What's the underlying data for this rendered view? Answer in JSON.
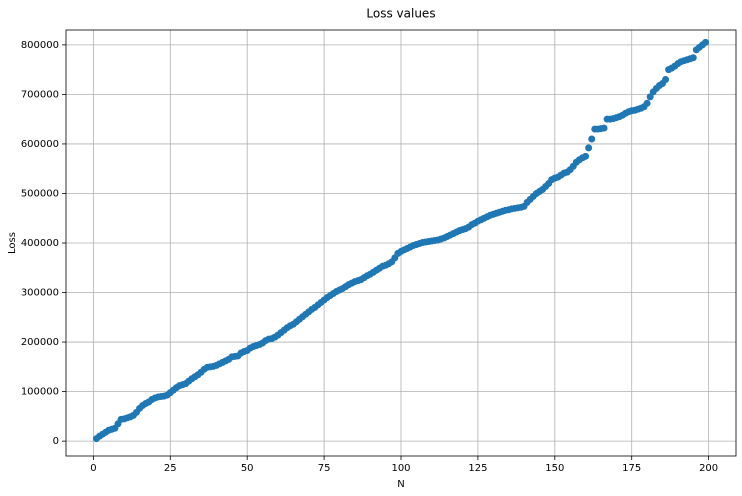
{
  "chart_data": {
    "type": "scatter",
    "title": "Loss values",
    "xlabel": "N",
    "ylabel": "Loss",
    "color": "#1f77b4",
    "grid": true,
    "xlim": [
      -8.9,
      208.9
    ],
    "ylim": [
      -30000,
      830000
    ],
    "xticks": [
      0,
      25,
      50,
      75,
      100,
      125,
      150,
      175,
      200
    ],
    "yticks": [
      0,
      100000,
      200000,
      300000,
      400000,
      500000,
      600000,
      700000,
      800000
    ],
    "x": [
      1,
      2,
      3,
      4,
      5,
      6,
      7,
      8,
      9,
      10,
      11,
      12,
      13,
      14,
      15,
      16,
      17,
      18,
      19,
      20,
      21,
      22,
      23,
      24,
      25,
      26,
      27,
      28,
      29,
      30,
      31,
      32,
      33,
      34,
      35,
      36,
      37,
      38,
      39,
      40,
      41,
      42,
      43,
      44,
      45,
      46,
      47,
      48,
      49,
      50,
      51,
      52,
      53,
      54,
      55,
      56,
      57,
      58,
      59,
      60,
      61,
      62,
      63,
      64,
      65,
      66,
      67,
      68,
      69,
      70,
      71,
      72,
      73,
      74,
      75,
      76,
      77,
      78,
      79,
      80,
      81,
      82,
      83,
      84,
      85,
      86,
      87,
      88,
      89,
      90,
      91,
      92,
      93,
      94,
      95,
      96,
      97,
      98,
      99,
      100,
      101,
      102,
      103,
      104,
      105,
      106,
      107,
      108,
      109,
      110,
      111,
      112,
      113,
      114,
      115,
      116,
      117,
      118,
      119,
      120,
      121,
      122,
      123,
      124,
      125,
      126,
      127,
      128,
      129,
      130,
      131,
      132,
      133,
      134,
      135,
      136,
      137,
      138,
      139,
      140,
      141,
      142,
      143,
      144,
      145,
      146,
      147,
      148,
      149,
      150,
      151,
      152,
      153,
      154,
      155,
      156,
      157,
      158,
      159,
      160,
      161,
      162,
      163,
      164,
      165,
      166,
      167,
      168,
      169,
      170,
      171,
      172,
      173,
      174,
      175,
      176,
      177,
      178,
      179,
      180,
      181,
      182,
      183,
      184,
      185,
      186,
      187,
      188,
      189,
      190,
      191,
      192,
      193,
      194,
      195,
      196,
      197,
      198,
      199
    ],
    "values": [
      5000,
      10000,
      14000,
      18000,
      22000,
      24000,
      26000,
      35000,
      44000,
      45000,
      47000,
      49000,
      52000,
      58000,
      66000,
      72000,
      76000,
      79000,
      84000,
      87000,
      89000,
      90000,
      91000,
      93000,
      98000,
      103000,
      108000,
      112000,
      114000,
      116000,
      121000,
      126000,
      130000,
      134000,
      139000,
      145000,
      149000,
      150000,
      151000,
      153000,
      156000,
      159000,
      162000,
      165000,
      170000,
      171000,
      172000,
      178000,
      181000,
      183000,
      188000,
      191000,
      193000,
      195000,
      198000,
      203000,
      206000,
      207000,
      210000,
      214000,
      219000,
      224000,
      229000,
      233000,
      236000,
      241000,
      246000,
      251000,
      256000,
      261000,
      266000,
      270000,
      275000,
      280000,
      285000,
      290000,
      294000,
      298000,
      302000,
      305000,
      308000,
      312000,
      316000,
      319000,
      322000,
      324000,
      326000,
      330000,
      334000,
      337000,
      341000,
      345000,
      349000,
      353000,
      355000,
      358000,
      362000,
      370000,
      379000,
      383000,
      386000,
      389000,
      392000,
      395000,
      397000,
      399000,
      401000,
      402000,
      403000,
      404000,
      405000,
      406000,
      408000,
      410000,
      413000,
      416000,
      419000,
      422000,
      425000,
      427000,
      429000,
      432000,
      437000,
      440000,
      444000,
      447000,
      450000,
      453000,
      456000,
      458000,
      460000,
      462000,
      464000,
      466000,
      467000,
      469000,
      470000,
      471000,
      472000,
      474000,
      482000,
      488000,
      494000,
      500000,
      504000,
      508000,
      514000,
      520000,
      528000,
      531000,
      533000,
      537000,
      541000,
      543000,
      548000,
      555000,
      563000,
      568000,
      572000,
      575000,
      592000,
      610000,
      630000,
      630000,
      631000,
      632000,
      650000,
      650000,
      651000,
      653000,
      655000,
      658000,
      662000,
      665000,
      667000,
      668000,
      670000,
      672000,
      675000,
      682000,
      695000,
      705000,
      712000,
      718000,
      722000,
      730000,
      750000,
      753000,
      757000,
      762000,
      766000,
      768000,
      770000,
      772000,
      774000,
      790000,
      795000,
      800000,
      805000
    ]
  }
}
